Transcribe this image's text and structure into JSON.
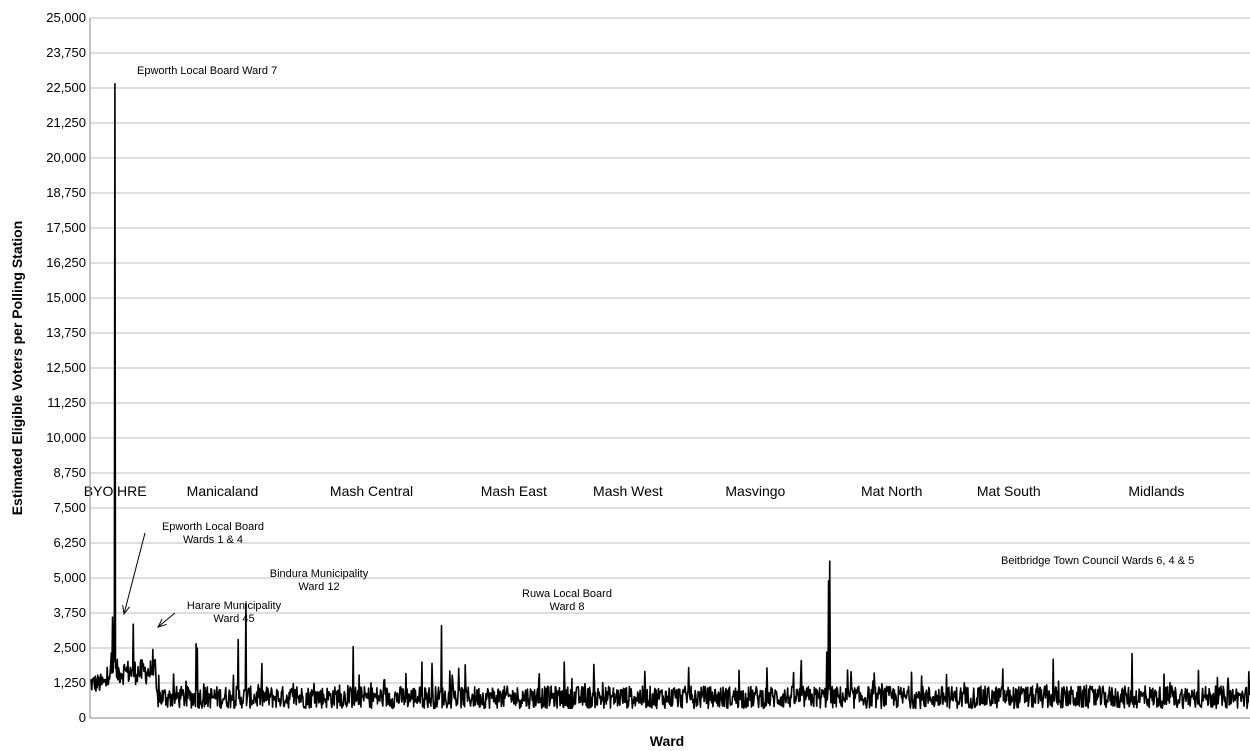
{
  "chart_data": {
    "type": "line",
    "title": "",
    "xlabel": "Ward",
    "ylabel": "Estimated Eligible Voters per Polling Station",
    "ylim": [
      0,
      25000
    ],
    "yticks": [
      "0",
      "1,250",
      "2,500",
      "3,750",
      "5,000",
      "6,250",
      "7,500",
      "8,750",
      "10,000",
      "11,250",
      "12,500",
      "13,750",
      "15,000",
      "16,250",
      "17,500",
      "18,750",
      "20,000",
      "21,250",
      "22,500",
      "23,750",
      "25,000"
    ],
    "ytick_values": [
      0,
      1250,
      2500,
      3750,
      5000,
      6250,
      7500,
      8750,
      10000,
      11250,
      12500,
      13750,
      15000,
      16250,
      17500,
      18750,
      20000,
      21250,
      22500,
      23750,
      25000
    ],
    "grid": true,
    "legend": "none",
    "x_count": 1958,
    "regions": [
      {
        "label": "BYO",
        "start": 0,
        "end": 29
      },
      {
        "label": "HRE",
        "start": 29,
        "end": 112
      },
      {
        "label": "Manicaland",
        "start": 112,
        "end": 335
      },
      {
        "label": "Mash Central",
        "start": 335,
        "end": 615
      },
      {
        "label": "Mash East",
        "start": 615,
        "end": 815
      },
      {
        "label": "Mash West",
        "start": 815,
        "end": 1000
      },
      {
        "label": "Masvingo",
        "start": 1000,
        "end": 1245
      },
      {
        "label": "Mat North",
        "start": 1245,
        "end": 1460
      },
      {
        "label": "Mat South",
        "start": 1460,
        "end": 1640
      },
      {
        "label": "Midlands",
        "start": 1640,
        "end": 1958
      }
    ],
    "spikes": [
      {
        "x": 42,
        "value": 22650
      },
      {
        "x": 38,
        "value": 3600
      },
      {
        "x": 40,
        "value": 3400
      },
      {
        "x": 73,
        "value": 3350
      },
      {
        "x": 179,
        "value": 2650
      },
      {
        "x": 181,
        "value": 2500
      },
      {
        "x": 250,
        "value": 2800
      },
      {
        "x": 263,
        "value": 4100
      },
      {
        "x": 444,
        "value": 2550
      },
      {
        "x": 560,
        "value": 2000
      },
      {
        "x": 577,
        "value": 1950
      },
      {
        "x": 593,
        "value": 3300
      },
      {
        "x": 633,
        "value": 1900
      },
      {
        "x": 800,
        "value": 2000
      },
      {
        "x": 1010,
        "value": 1800
      },
      {
        "x": 1095,
        "value": 1700
      },
      {
        "x": 1200,
        "value": 2050
      },
      {
        "x": 1243,
        "value": 2350
      },
      {
        "x": 1246,
        "value": 4900
      },
      {
        "x": 1248,
        "value": 5600
      },
      {
        "x": 1540,
        "value": 1750
      },
      {
        "x": 1625,
        "value": 2100
      },
      {
        "x": 1758,
        "value": 2300
      },
      {
        "x": 1870,
        "value": 1700
      },
      {
        "x": 1955,
        "value": 1650
      }
    ],
    "annotations": [
      {
        "lines": [
          "Epworth Local Board Ward 7"
        ],
        "x": 42,
        "value": 22650
      },
      {
        "lines": [
          "Epworth Local Board",
          "Wards 1 & 4"
        ],
        "x": 38,
        "value": 3600
      },
      {
        "lines": [
          "Harare Municipality",
          "Ward 45"
        ],
        "x": 73,
        "value": 3350
      },
      {
        "lines": [
          "Bindura Municipality",
          "Ward 12"
        ],
        "x": 263,
        "value": 4100
      },
      {
        "lines": [
          "Ruwa Local Board",
          "Ward 8"
        ],
        "x": 593,
        "value": 3300
      },
      {
        "lines": [
          "Beitbridge Town Council Wards 6, 4 & 5"
        ],
        "x": 1248,
        "value": 5600
      }
    ]
  }
}
